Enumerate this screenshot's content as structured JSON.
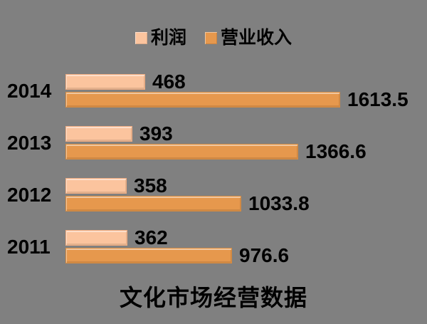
{
  "page": {
    "background": "#808080"
  },
  "chart_data": {
    "type": "bar",
    "orientation": "horizontal",
    "title": "文化市场经营数据",
    "categories": [
      "2014",
      "2013",
      "2012",
      "2011"
    ],
    "series": [
      {
        "name": "利润",
        "color": "#FBC49E",
        "border": "#EFAC81",
        "values": [
          468,
          393,
          358,
          362
        ]
      },
      {
        "name": "营业收入",
        "color": "#E6984D",
        "border": "#D68B40",
        "values": [
          1613.5,
          1366.6,
          1033.8,
          976.6
        ]
      }
    ],
    "xlim": [
      0,
      1650
    ],
    "value_labels": true,
    "legend_position": "top",
    "grid": false,
    "background": "#808080",
    "text_color": "#000000"
  }
}
